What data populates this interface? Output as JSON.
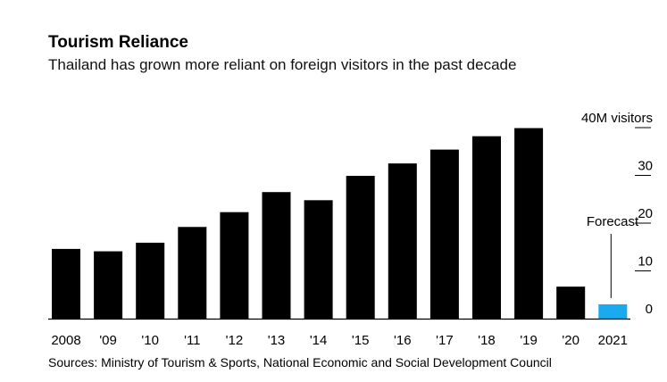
{
  "chart_data": {
    "type": "bar",
    "title": "Tourism Reliance",
    "subtitle": "Thailand has grown more reliant on foreign visitors in the past decade",
    "categories": [
      "2008",
      "'09",
      "'10",
      "'11",
      "'12",
      "'13",
      "'14",
      "'15",
      "'16",
      "'17",
      "'18",
      "'19",
      "'20",
      "2021"
    ],
    "values": [
      14.6,
      14.1,
      15.9,
      19.2,
      22.3,
      26.5,
      24.8,
      29.9,
      32.5,
      35.4,
      38.2,
      39.9,
      6.7,
      3.0
    ],
    "forecast_category": "2021",
    "forecast_label": "Forecast",
    "ylim": [
      0,
      40
    ],
    "y_ticks": [
      0,
      10,
      20,
      30,
      40
    ],
    "y_tick_labels": [
      "0",
      "10",
      "20",
      "30",
      "40M visitors"
    ],
    "source": "Sources: Ministry of Tourism & Sports, National Economic and Social Development Council",
    "colors": {
      "bar": "#000000",
      "forecast": "#1ba9ef"
    }
  }
}
